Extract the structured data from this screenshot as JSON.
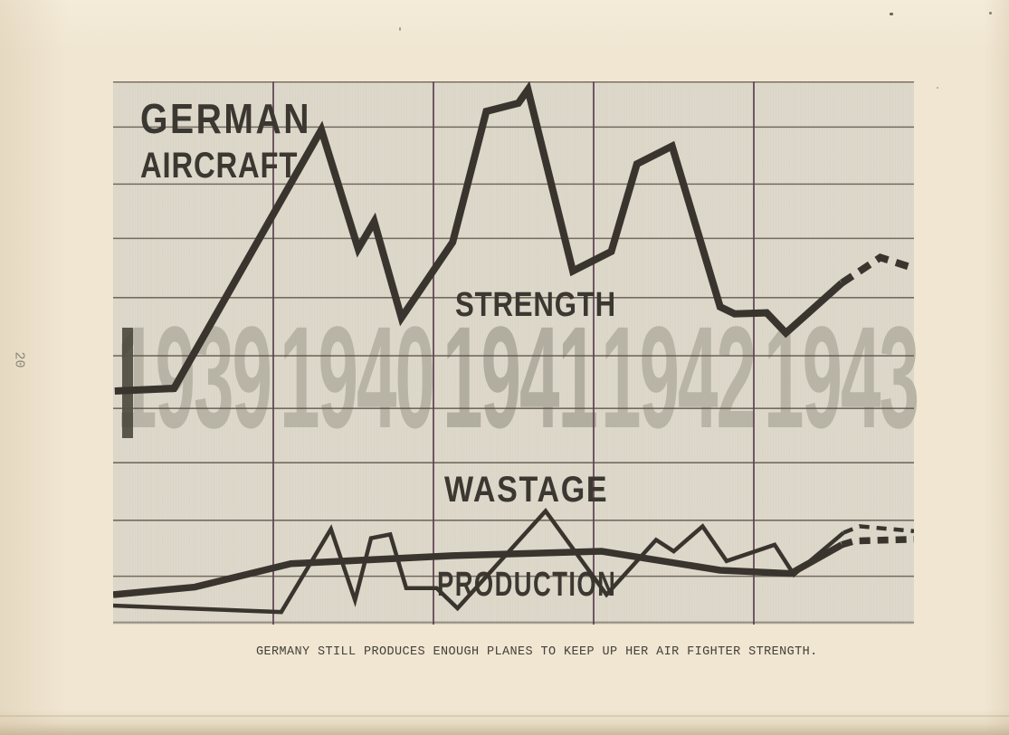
{
  "page": {
    "number": "20",
    "caption": "GERMANY STILL PRODUCES ENOUGH PLANES TO KEEP UP HER AIR FIGHTER STRENGTH."
  },
  "colors": {
    "paper": "#f0e6d2",
    "panel": "#dcd8ca",
    "ink": "#39352e",
    "grid_horizontal": "#5b5046",
    "grid_vertical": "#5e4050",
    "year_watermark": "#b5b1a3"
  },
  "chart_data": {
    "type": "line",
    "title": "GERMAN AIRCRAFT",
    "xlabel": "",
    "ylabel": "",
    "x_range": [
      1939,
      1944
    ],
    "y_range": [
      0,
      100
    ],
    "y_unit": "relative level (chart has no numeric axis)",
    "grid": true,
    "legend_position": "labels printed on chart",
    "x_tick_labels": [
      "1939",
      "1940",
      "1941",
      "1942",
      "1943"
    ],
    "gridlines": {
      "h_pct": [
        100,
        91.6,
        81.1,
        71.1,
        60.2,
        49.5,
        39.8,
        29.8,
        19.2,
        8.9,
        0.4
      ],
      "v_years": [
        1940,
        1941,
        1942,
        1943
      ]
    },
    "annotations": [
      {
        "text": "GERMAN",
        "x": 1939.2,
        "y": 95
      },
      {
        "text": "AIRCRAFT",
        "x": 1939.2,
        "y": 86
      },
      {
        "text": "STRENGTH",
        "x": 1941.2,
        "y": 59
      },
      {
        "text": "WASTAGE",
        "x": 1941.1,
        "y": 26
      },
      {
        "text": "PRODUCTION",
        "x": 1941.0,
        "y": 8
      }
    ],
    "series": [
      {
        "name": "STRENGTH",
        "style": "thick solid, dashed projection at end",
        "points": [
          [
            1939.01,
            43.0
          ],
          [
            1939.38,
            43.5
          ],
          [
            1940.3,
            91.1
          ],
          [
            1940.53,
            69.2
          ],
          [
            1940.63,
            74.2
          ],
          [
            1940.8,
            56.5
          ],
          [
            1941.12,
            70.4
          ],
          [
            1941.33,
            94.5
          ],
          [
            1941.53,
            96.0
          ],
          [
            1941.59,
            98.5
          ],
          [
            1941.87,
            65.1
          ],
          [
            1942.11,
            68.7
          ],
          [
            1942.27,
            84.8
          ],
          [
            1942.49,
            88.1
          ],
          [
            1942.79,
            58.5
          ],
          [
            1942.88,
            57.2
          ],
          [
            1943.08,
            57.4
          ],
          [
            1943.2,
            53.7
          ],
          [
            1943.55,
            62.9
          ]
        ],
        "projection": [
          [
            1943.55,
            62.9
          ],
          [
            1943.79,
            67.6
          ],
          [
            1944.0,
            65.6
          ]
        ]
      },
      {
        "name": "WASTAGE",
        "style": "thin solid, dashed projection at end",
        "points": [
          [
            1939.0,
            3.5
          ],
          [
            1940.05,
            2.3
          ],
          [
            1940.36,
            17.6
          ],
          [
            1940.51,
            4.5
          ],
          [
            1940.61,
            15.9
          ],
          [
            1940.73,
            16.6
          ],
          [
            1940.83,
            6.7
          ],
          [
            1941.02,
            6.7
          ],
          [
            1941.15,
            3.0
          ],
          [
            1941.7,
            20.9
          ],
          [
            1942.08,
            5.5
          ],
          [
            1942.39,
            15.6
          ],
          [
            1942.5,
            13.5
          ],
          [
            1942.68,
            18.1
          ],
          [
            1942.83,
            11.7
          ],
          [
            1943.13,
            14.7
          ],
          [
            1943.25,
            9.2
          ],
          [
            1943.56,
            16.9
          ]
        ],
        "projection": [
          [
            1943.56,
            16.9
          ],
          [
            1943.66,
            18.1
          ],
          [
            1944.0,
            17.2
          ]
        ]
      },
      {
        "name": "PRODUCTION",
        "style": "thick solid, dashed projection at end",
        "points": [
          [
            1939.0,
            5.5
          ],
          [
            1939.51,
            6.9
          ],
          [
            1940.11,
            11.2
          ],
          [
            1941.12,
            12.7
          ],
          [
            1942.05,
            13.5
          ],
          [
            1942.79,
            10.0
          ],
          [
            1943.23,
            9.4
          ],
          [
            1943.55,
            14.7
          ]
        ],
        "projection": [
          [
            1943.55,
            14.7
          ],
          [
            1943.63,
            15.4
          ],
          [
            1944.0,
            15.7
          ]
        ]
      }
    ]
  }
}
